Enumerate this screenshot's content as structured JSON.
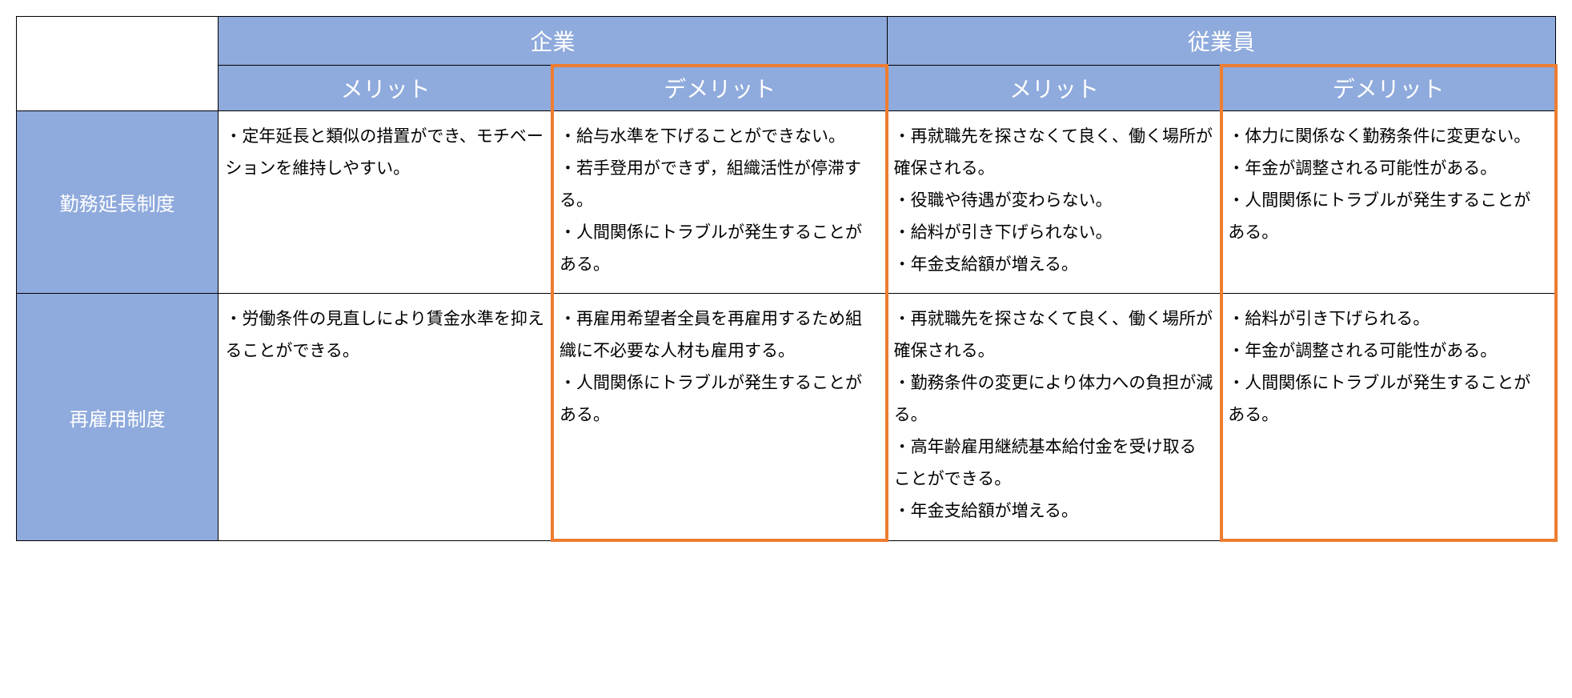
{
  "table": {
    "colors": {
      "header_bg": "#8faadc",
      "header_text": "#ffffff",
      "cell_bg": "#ffffff",
      "cell_text": "#000000",
      "border": "#000000",
      "highlight_border": "#ed7d31"
    },
    "col_widths": {
      "row_header": 200,
      "data": 331
    },
    "group_headers": [
      "企業",
      "従業員"
    ],
    "sub_headers": [
      "メリット",
      "デメリット",
      "メリット",
      "デメリット"
    ],
    "rows": [
      {
        "label": "勤務延長制度",
        "cells": [
          "・定年延長と類似の措置ができ、モチベーションを維持しやすい。",
          "・給与水準を下げることができない。\n・若手登用ができず，組織活性が停滞する。\n・人間関係にトラブルが発生することがある。",
          "・再就職先を探さなくて良く、働く場所が確保される。\n・役職や待遇が変わらない。\n・給料が引き下げられない。\n・年金支給額が増える。",
          "・体力に関係なく勤務条件に変更ない。\n・年金が調整される可能性がある。\n・人間関係にトラブルが発生することがある。"
        ]
      },
      {
        "label": "再雇用制度",
        "cells": [
          "・労働条件の見直しにより賃金水準を抑えることができる。",
          "・再雇用希望者全員を再雇用するため組織に不必要な人材も雇用する。\n・人間関係にトラブルが発生することがある。",
          "・再就職先を探さなくて良く、働く場所が確保される。\n・勤務条件の変更により体力への負担が減る。\n・高年齢雇用継続基本給付金を受け取ることができる。\n・年金支給額が増える。",
          "・給料が引き下げられる。\n・年金が調整される可能性がある。\n・人間関係にトラブルが発生することがある。"
        ]
      }
    ],
    "highlights": [
      {
        "col_index": 1
      },
      {
        "col_index": 3
      }
    ]
  }
}
